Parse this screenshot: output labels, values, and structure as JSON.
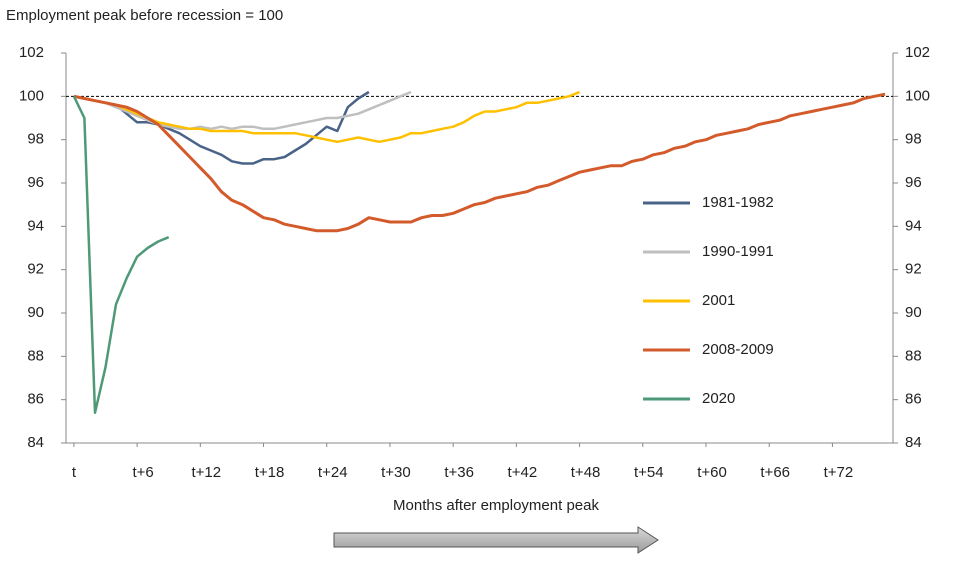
{
  "chart_data": {
    "type": "line",
    "title": "Employment peak before recession = 100",
    "xlabel": "Months after employment peak",
    "x": [
      0,
      1,
      2,
      3,
      4,
      5,
      6,
      7,
      8,
      9,
      10,
      11,
      12,
      13,
      14,
      15,
      16,
      17,
      18,
      19,
      20,
      21,
      22,
      23,
      24,
      25,
      26,
      27,
      28,
      29,
      30,
      31,
      32,
      33,
      34,
      35,
      36,
      37,
      38,
      39,
      40,
      41,
      42,
      43,
      44,
      45,
      46,
      47,
      48,
      49,
      50,
      51,
      52,
      53,
      54,
      55,
      56,
      57,
      58,
      59,
      60,
      61,
      62,
      63,
      64,
      65,
      66,
      67,
      68,
      69,
      70,
      71,
      72,
      73,
      74,
      75,
      76,
      77
    ],
    "series": [
      {
        "name": "1981-1982",
        "color": "#4a6489",
        "values": [
          100,
          99.9,
          99.8,
          99.7,
          99.6,
          99.2,
          98.8,
          98.8,
          98.7,
          98.5,
          98.3,
          98.0,
          97.7,
          97.5,
          97.3,
          97.0,
          96.9,
          96.9,
          97.1,
          97.1,
          97.2,
          97.5,
          97.8,
          98.2,
          98.6,
          98.4,
          99.5,
          99.9,
          100.2,
          null,
          null,
          null,
          null,
          null,
          null,
          null,
          null,
          null,
          null,
          null,
          null,
          null,
          null,
          null,
          null,
          null,
          null,
          null,
          null,
          null,
          null,
          null,
          null,
          null,
          null,
          null,
          null,
          null,
          null,
          null,
          null,
          null,
          null,
          null,
          null,
          null,
          null,
          null,
          null,
          null,
          null,
          null,
          null,
          null,
          null,
          null,
          null,
          null
        ]
      },
      {
        "name": "1990-1991",
        "color": "#bfbfbf",
        "values": [
          100,
          99.9,
          99.8,
          99.7,
          99.5,
          99.3,
          99.1,
          98.9,
          98.7,
          98.6,
          98.5,
          98.5,
          98.6,
          98.5,
          98.6,
          98.5,
          98.6,
          98.6,
          98.5,
          98.5,
          98.6,
          98.7,
          98.8,
          98.9,
          99.0,
          99.0,
          99.1,
          99.2,
          99.4,
          99.6,
          99.8,
          100.0,
          100.2,
          null,
          null,
          null,
          null,
          null,
          null,
          null,
          null,
          null,
          null,
          null,
          null,
          null,
          null,
          null,
          null,
          null,
          null,
          null,
          null,
          null,
          null,
          null,
          null,
          null,
          null,
          null,
          null,
          null,
          null,
          null,
          null,
          null,
          null,
          null,
          null,
          null,
          null,
          null,
          null,
          null,
          null,
          null,
          null,
          null
        ]
      },
      {
        "name": "2001",
        "color": "#ffc000",
        "values": [
          100,
          99.9,
          99.8,
          99.7,
          99.6,
          99.4,
          99.2,
          99.0,
          98.8,
          98.7,
          98.6,
          98.5,
          98.5,
          98.4,
          98.4,
          98.4,
          98.4,
          98.3,
          98.3,
          98.3,
          98.3,
          98.3,
          98.2,
          98.1,
          98.0,
          97.9,
          98.0,
          98.1,
          98.0,
          97.9,
          98.0,
          98.1,
          98.3,
          98.3,
          98.4,
          98.5,
          98.6,
          98.8,
          99.1,
          99.3,
          99.3,
          99.4,
          99.5,
          99.7,
          99.7,
          99.8,
          99.9,
          100.0,
          100.2,
          null,
          null,
          null,
          null,
          null,
          null,
          null,
          null,
          null,
          null,
          null,
          null,
          null,
          null,
          null,
          null,
          null,
          null,
          null,
          null,
          null,
          null,
          null,
          null,
          null,
          null,
          null,
          null,
          null
        ]
      },
      {
        "name": "2008-2009",
        "color": "#d35a2a",
        "values": [
          100,
          99.9,
          99.8,
          99.7,
          99.6,
          99.5,
          99.3,
          99.0,
          98.7,
          98.2,
          97.7,
          97.2,
          96.7,
          96.2,
          95.6,
          95.2,
          95.0,
          94.7,
          94.4,
          94.3,
          94.1,
          94.0,
          93.9,
          93.8,
          93.8,
          93.8,
          93.9,
          94.1,
          94.4,
          94.3,
          94.2,
          94.2,
          94.2,
          94.4,
          94.5,
          94.5,
          94.6,
          94.8,
          95.0,
          95.1,
          95.3,
          95.4,
          95.5,
          95.6,
          95.8,
          95.9,
          96.1,
          96.3,
          96.5,
          96.6,
          96.7,
          96.8,
          96.8,
          97.0,
          97.1,
          97.3,
          97.4,
          97.6,
          97.7,
          97.9,
          98.0,
          98.2,
          98.3,
          98.4,
          98.5,
          98.7,
          98.8,
          98.9,
          99.1,
          99.2,
          99.3,
          99.4,
          99.5,
          99.6,
          99.7,
          99.9,
          100.0,
          100.1
        ]
      },
      {
        "name": "2020",
        "color": "#4e9a78",
        "values": [
          100,
          99.0,
          85.4,
          87.5,
          90.4,
          91.6,
          92.6,
          93.0,
          93.3,
          93.5,
          null,
          null,
          null,
          null,
          null,
          null,
          null,
          null,
          null,
          null,
          null,
          null,
          null,
          null,
          null,
          null,
          null,
          null,
          null,
          null,
          null,
          null,
          null,
          null,
          null,
          null,
          null,
          null,
          null,
          null,
          null,
          null,
          null,
          null,
          null,
          null,
          null,
          null,
          null,
          null,
          null,
          null,
          null,
          null,
          null,
          null,
          null,
          null,
          null,
          null,
          null,
          null,
          null,
          null,
          null,
          null,
          null,
          null,
          null,
          null,
          null,
          null,
          null,
          null,
          null,
          null,
          null,
          null
        ]
      }
    ],
    "xlim": [
      -0.75,
      77.75
    ],
    "xticks": [
      {
        "value": 0,
        "label": "t"
      },
      {
        "value": 6,
        "label": "t+6"
      },
      {
        "value": 12,
        "label": "t+12"
      },
      {
        "value": 18,
        "label": "t+18"
      },
      {
        "value": 24,
        "label": "t+24"
      },
      {
        "value": 30,
        "label": "t+30"
      },
      {
        "value": 36,
        "label": "t+36"
      },
      {
        "value": 42,
        "label": "t+42"
      },
      {
        "value": 48,
        "label": "t+48"
      },
      {
        "value": 54,
        "label": "t+54"
      },
      {
        "value": 60,
        "label": "t+60"
      },
      {
        "value": 66,
        "label": "t+66"
      },
      {
        "value": 72,
        "label": "t+72"
      }
    ],
    "ylim": [
      84,
      102
    ],
    "yticks": [
      84,
      86,
      88,
      90,
      92,
      94,
      96,
      98,
      100,
      102
    ],
    "y2lim": [
      84,
      102
    ],
    "y2ticks": [
      84,
      86,
      88,
      90,
      92,
      94,
      96,
      98,
      100,
      102
    ],
    "reference_line": 100,
    "legend": "right"
  }
}
